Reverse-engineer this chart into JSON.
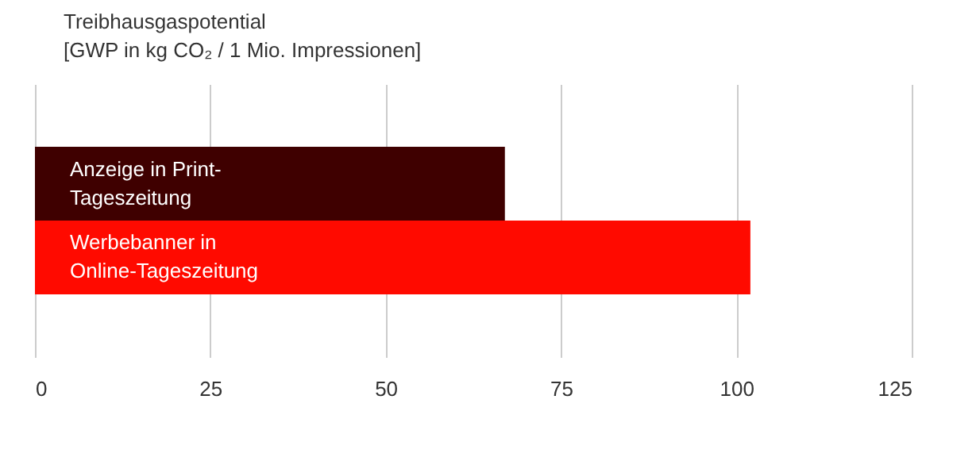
{
  "chart_data": {
    "type": "bar",
    "orientation": "horizontal",
    "title": "Treibhausgaspotential\n[GWP in kg CO₂ / 1 Mio. Impressionen]",
    "categories": [
      "Anzeige in Print-\nTageszeitung",
      "Werbebanner in\nOnline-Tageszeitung"
    ],
    "values": [
      67,
      102
    ],
    "colors": [
      "#3f0000",
      "#ff0a00"
    ],
    "xlim": [
      0,
      125
    ],
    "xticks": [
      0,
      25,
      50,
      75,
      100,
      125
    ],
    "grid": "x",
    "tick_labels": "x"
  }
}
